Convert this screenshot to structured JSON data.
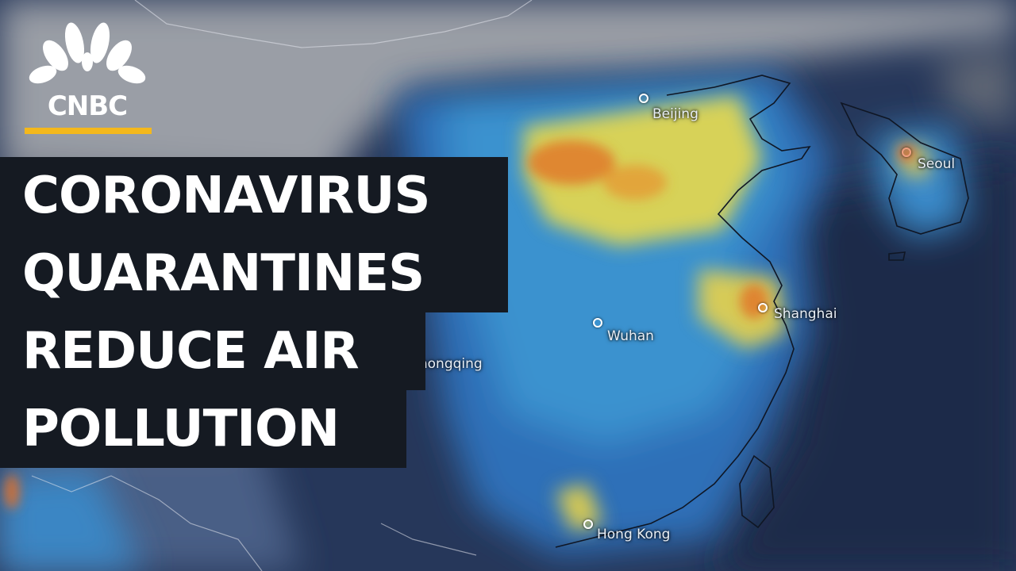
{
  "brand": {
    "name": "CNBC",
    "accent": "#f4b81c",
    "icon": "peacock-icon"
  },
  "headline": {
    "lines": [
      "CORONAVIRUS",
      "QUARANTINES",
      "REDUCE AIR",
      "POLLUTION"
    ]
  },
  "map": {
    "cities": [
      {
        "id": "beijing",
        "label": "Beijing"
      },
      {
        "id": "seoul",
        "label": "Seoul"
      },
      {
        "id": "shanghai",
        "label": "Shanghai"
      },
      {
        "id": "wuhan",
        "label": "Wuhan"
      },
      {
        "id": "chongqing",
        "label": "Chongqing"
      },
      {
        "id": "hong-kong",
        "label": "Hong Kong"
      }
    ],
    "colors": {
      "low": "#1f3f7a",
      "mid": "#2f8fd0",
      "high": "#f2d23a",
      "peak": "#e0641f",
      "land": "#8a8f98"
    }
  }
}
